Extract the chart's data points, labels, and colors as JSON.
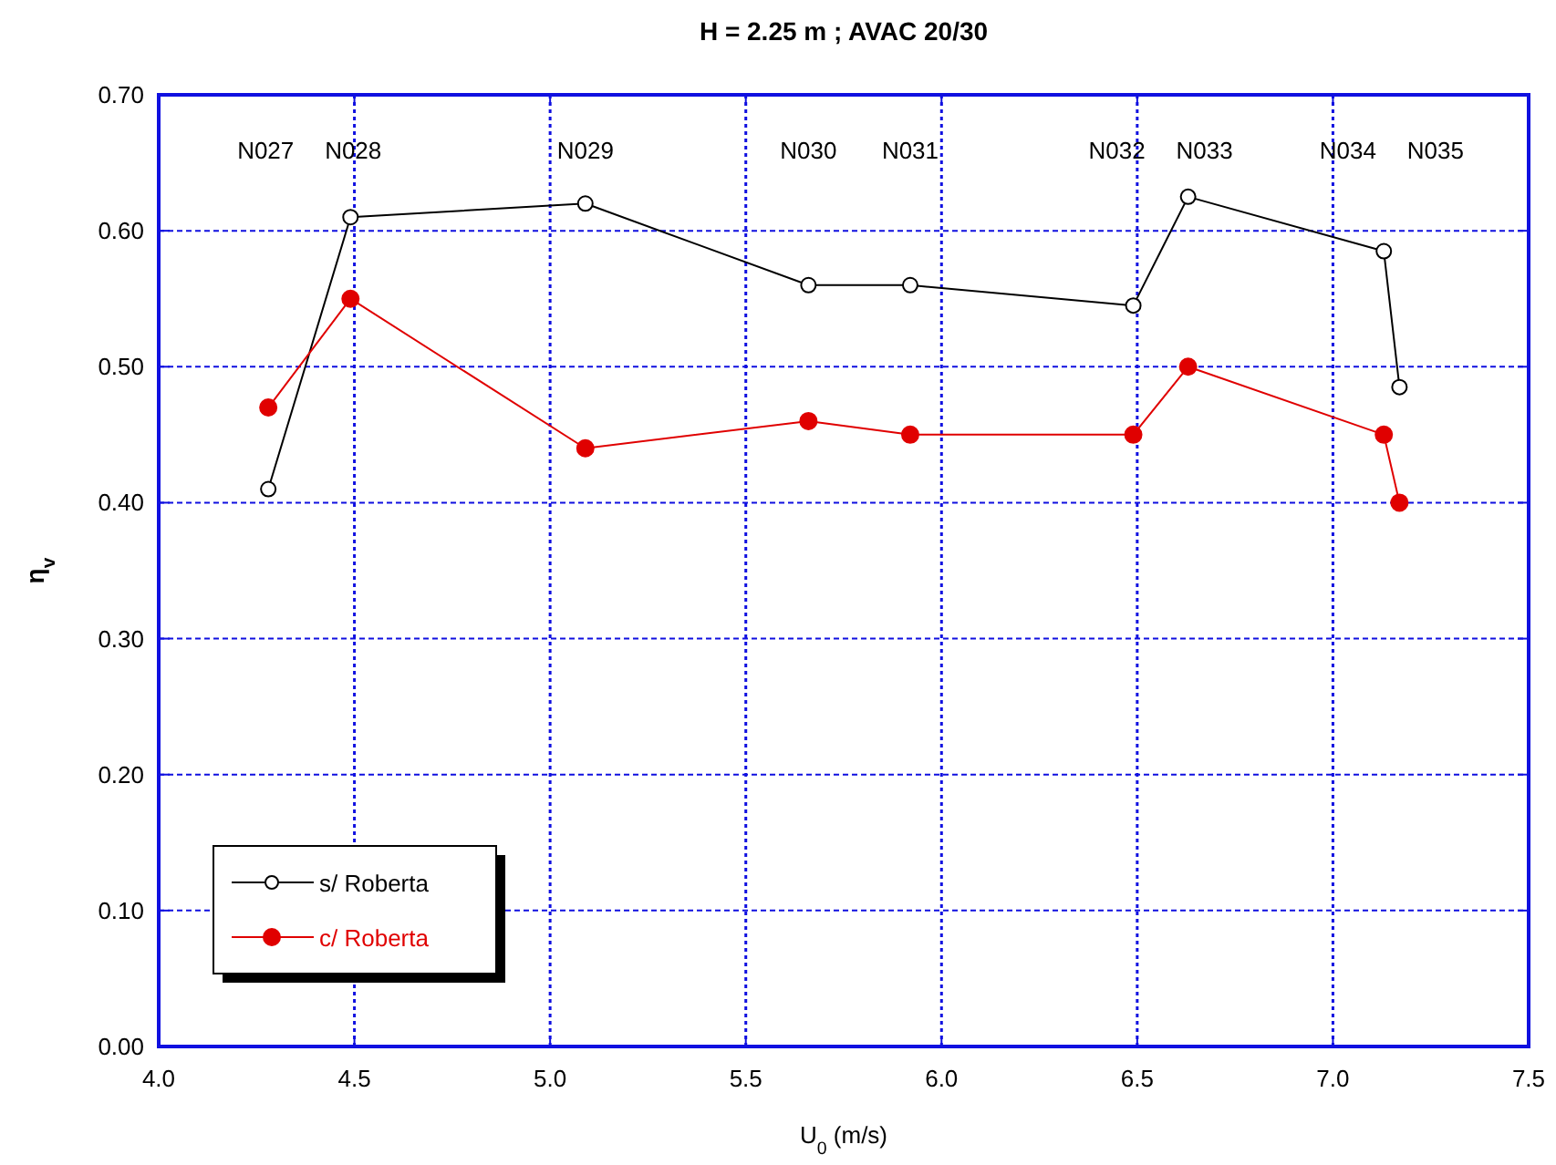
{
  "chart_data": {
    "type": "line",
    "title": "H = 2.25 m ; AVAC 20/30",
    "xlabel": "U$_{0}$ (m/s)",
    "ylabel": "η$_{v}$",
    "xlim": [
      4.0,
      7.5
    ],
    "xticks": [
      {
        "value": 4.0,
        "label": "4.0"
      },
      {
        "value": 4.5,
        "label": "4.5"
      },
      {
        "value": 5.0,
        "label": "5.0"
      },
      {
        "value": 5.5,
        "label": "5.5"
      },
      {
        "value": 6.0,
        "label": "6.0"
      },
      {
        "value": 6.5,
        "label": "6.5"
      },
      {
        "value": 7.0,
        "label": "7.0"
      },
      {
        "value": 7.5,
        "label": "7.5"
      }
    ],
    "ylim": [
      0,
      0.7
    ],
    "yticks": [
      {
        "value": 0,
        "label": "0.00"
      },
      {
        "value": 0.1,
        "label": "0.10"
      },
      {
        "value": 0.2,
        "label": "0.20"
      },
      {
        "value": 0.3,
        "label": "0.30"
      },
      {
        "value": 0.4,
        "label": "0.40"
      },
      {
        "value": 0.5,
        "label": "0.50"
      },
      {
        "value": 0.6,
        "label": "0.60"
      },
      {
        "value": 0.7,
        "label": "0.70"
      }
    ],
    "grid": true,
    "legend": "bottom left",
    "line_style": "solid",
    "x": [
      4.28,
      4.49,
      5.09,
      5.66,
      5.92,
      6.49,
      6.63,
      7.13,
      7.17
    ],
    "series": [
      {
        "name": "s/ Roberta",
        "color": "#000000",
        "marker": "circle_open",
        "values": [
          0.41,
          0.61,
          0.62,
          0.56,
          0.56,
          0.545,
          0.625,
          0.585,
          0.485
        ]
      },
      {
        "name": "c/ Roberta",
        "color": "#e00000",
        "marker": "circle",
        "values": [
          0.47,
          0.55,
          0.44,
          0.46,
          0.45,
          0.45,
          0.5,
          0.45,
          0.4
        ]
      }
    ],
    "annotations": [
      "N027",
      "N028",
      "N029",
      "N030",
      "N031",
      "N032",
      "N033",
      "N034",
      "N035"
    ]
  }
}
